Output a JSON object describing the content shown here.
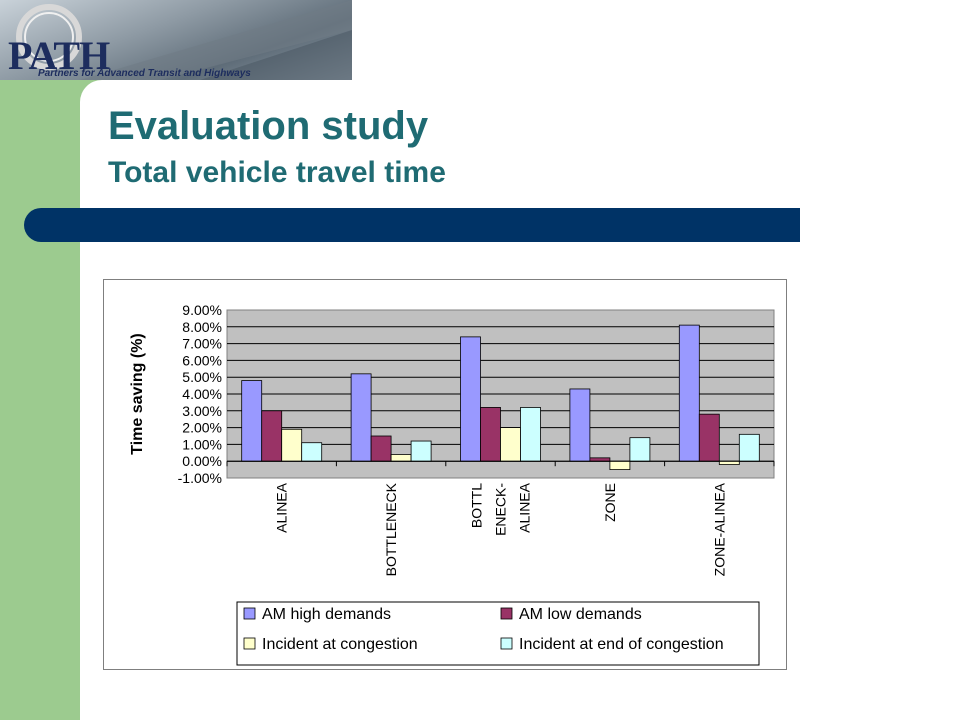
{
  "slide": {
    "logo": "PATH",
    "logo_subtitle": "Partners for Advanced Transit and Highways",
    "title": "Evaluation study",
    "subtitle": "Total vehicle travel time"
  },
  "chart_data": {
    "type": "bar",
    "ylabel": "Time saving (%)",
    "ylim": [
      -1,
      9
    ],
    "yticks": [
      "9.00%",
      "8.00%",
      "7.00%",
      "6.00%",
      "5.00%",
      "4.00%",
      "3.00%",
      "2.00%",
      "1.00%",
      "0.00%",
      "-1.00%"
    ],
    "grid": true,
    "legend_position": "bottom",
    "categories": [
      [
        "ALINEA"
      ],
      [
        "BOTTLENECK"
      ],
      [
        "BOTTL",
        "ENECK-",
        "ALINEA"
      ],
      [
        "ZONE"
      ],
      [
        "ZONE-ALINEA"
      ]
    ],
    "series": [
      {
        "name": "AM high demands",
        "color": "#9999ff",
        "values": [
          4.8,
          5.2,
          7.4,
          4.3,
          8.1
        ]
      },
      {
        "name": "AM low demands",
        "color": "#993366",
        "values": [
          3.0,
          1.5,
          3.2,
          0.2,
          2.8
        ]
      },
      {
        "name": "Incident at congestion",
        "color": "#ffffcc",
        "values": [
          1.9,
          0.4,
          2.0,
          -0.5,
          -0.2
        ]
      },
      {
        "name": "Incident at end of congestion",
        "color": "#ccffff",
        "values": [
          1.1,
          1.2,
          3.2,
          1.4,
          1.6
        ]
      }
    ]
  }
}
